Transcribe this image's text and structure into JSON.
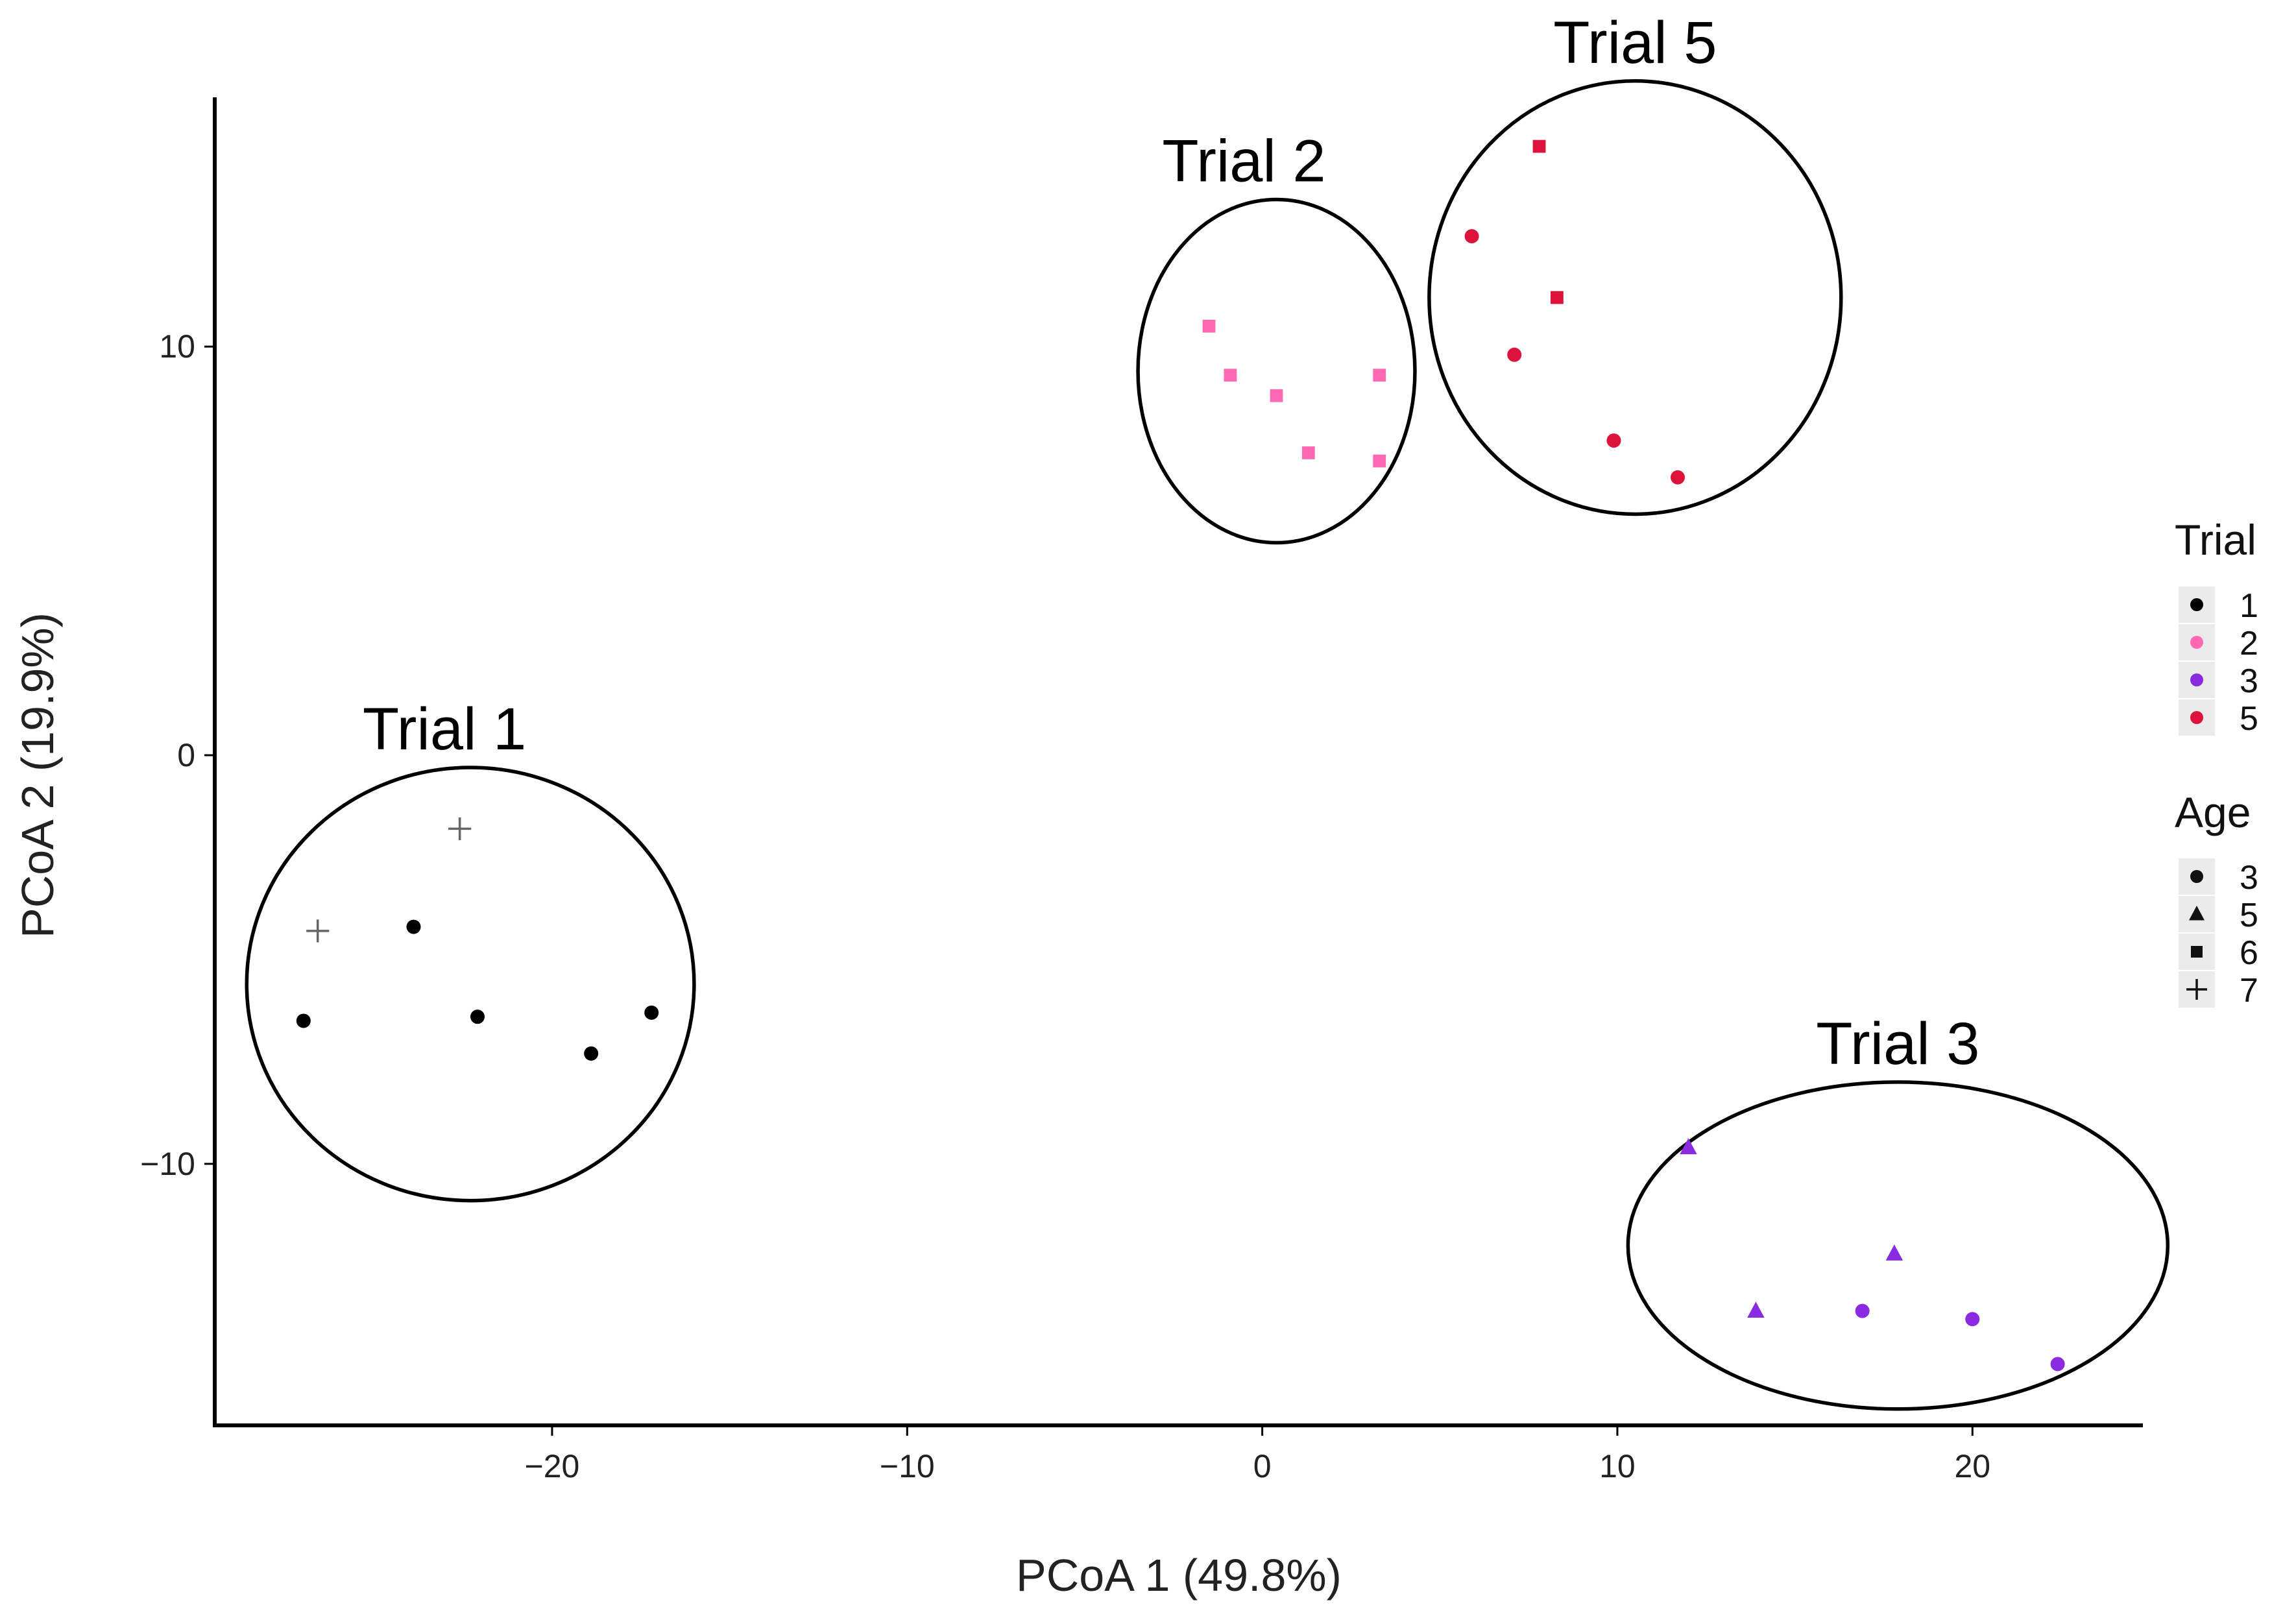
{
  "chart_data": {
    "type": "scatter",
    "xlabel": "PCoA 1 (49.8%)",
    "ylabel": "PCoA 2 (19.9%)",
    "xlim": [
      -29.5,
      24.8
    ],
    "ylim": [
      -16.4,
      16.1
    ],
    "x_ticks": [
      -20,
      -10,
      0,
      10,
      20
    ],
    "x_tick_labels": [
      "−20",
      "−10",
      "0",
      "10",
      "20"
    ],
    "y_ticks": [
      -10,
      0,
      10
    ],
    "y_tick_labels": [
      "−10",
      "0",
      "10"
    ],
    "grid": false,
    "colors": {
      "trial_1": "#000000",
      "trial_2": "#ff69b4",
      "trial_3": "#8a2be2",
      "trial_5": "#dc143c",
      "ellipse_stroke": "#000000",
      "axis": "#000000",
      "age_legend_key": "#111111"
    },
    "series": [
      {
        "name": "1",
        "trial": "1",
        "color": "#000000",
        "points": [
          {
            "x": -27.0,
            "y": -6.5,
            "age": "3"
          },
          {
            "x": -23.9,
            "y": -4.2,
            "age": "3"
          },
          {
            "x": -22.1,
            "y": -6.4,
            "age": "3"
          },
          {
            "x": -18.9,
            "y": -7.3,
            "age": "3"
          },
          {
            "x": -17.2,
            "y": -6.3,
            "age": "3"
          },
          {
            "x": -26.6,
            "y": -4.3,
            "age": "7"
          },
          {
            "x": -22.6,
            "y": -1.8,
            "age": "7"
          }
        ]
      },
      {
        "name": "2",
        "trial": "2",
        "color": "#ff69b4",
        "points": [
          {
            "x": -1.5,
            "y": 10.5,
            "age": "6"
          },
          {
            "x": -0.9,
            "y": 9.3,
            "age": "6"
          },
          {
            "x": 0.4,
            "y": 8.8,
            "age": "6"
          },
          {
            "x": 3.3,
            "y": 9.3,
            "age": "6"
          },
          {
            "x": 1.3,
            "y": 7.4,
            "age": "6"
          },
          {
            "x": 3.3,
            "y": 7.2,
            "age": "6"
          }
        ]
      },
      {
        "name": "3",
        "trial": "3",
        "color": "#8a2be2",
        "points": [
          {
            "x": 12.0,
            "y": -9.6,
            "age": "5"
          },
          {
            "x": 17.8,
            "y": -12.2,
            "age": "5"
          },
          {
            "x": 13.9,
            "y": -13.6,
            "age": "5"
          },
          {
            "x": 16.9,
            "y": -13.6,
            "age": "3"
          },
          {
            "x": 20.0,
            "y": -13.8,
            "age": "3"
          },
          {
            "x": 22.4,
            "y": -14.9,
            "age": "3"
          }
        ]
      },
      {
        "name": "5",
        "trial": "5",
        "color": "#dc143c",
        "points": [
          {
            "x": 7.8,
            "y": 14.9,
            "age": "6"
          },
          {
            "x": 8.3,
            "y": 11.2,
            "age": "6"
          },
          {
            "x": 5.9,
            "y": 12.7,
            "age": "3"
          },
          {
            "x": 7.1,
            "y": 9.8,
            "age": "3"
          },
          {
            "x": 9.9,
            "y": 7.7,
            "age": "3"
          },
          {
            "x": 11.7,
            "y": 6.8,
            "age": "3"
          }
        ]
      }
    ],
    "ellipses": [
      {
        "name": "Trial 1",
        "label": "Trial 1",
        "cx": -22.3,
        "cy": -5.6,
        "rx": 6.3,
        "ry": 5.3
      },
      {
        "name": "Trial 2",
        "label": "Trial 2",
        "cx": 0.4,
        "cy": 9.4,
        "rx": 3.9,
        "ry": 4.2
      },
      {
        "name": "Trial 5",
        "label": "Trial 5",
        "cx": 10.5,
        "cy": 11.2,
        "rx": 5.8,
        "ry": 5.3
      },
      {
        "name": "Trial 3",
        "label": "Trial 3",
        "cx": 17.9,
        "cy": -12.0,
        "rx": 7.6,
        "ry": 4.0
      }
    ],
    "legend": {
      "position": "right",
      "trial": {
        "title": "Trial",
        "entries": [
          {
            "label": "1",
            "color": "#000000",
            "shape": "circle"
          },
          {
            "label": "2",
            "color": "#ff69b4",
            "shape": "circle"
          },
          {
            "label": "3",
            "color": "#8a2be2",
            "shape": "circle"
          },
          {
            "label": "5",
            "color": "#dc143c",
            "shape": "circle"
          }
        ]
      },
      "age": {
        "title": "Age",
        "entries": [
          {
            "label": "3",
            "shape": "circle"
          },
          {
            "label": "5",
            "shape": "triangle"
          },
          {
            "label": "6",
            "shape": "square"
          },
          {
            "label": "7",
            "shape": "cross"
          }
        ]
      }
    }
  }
}
